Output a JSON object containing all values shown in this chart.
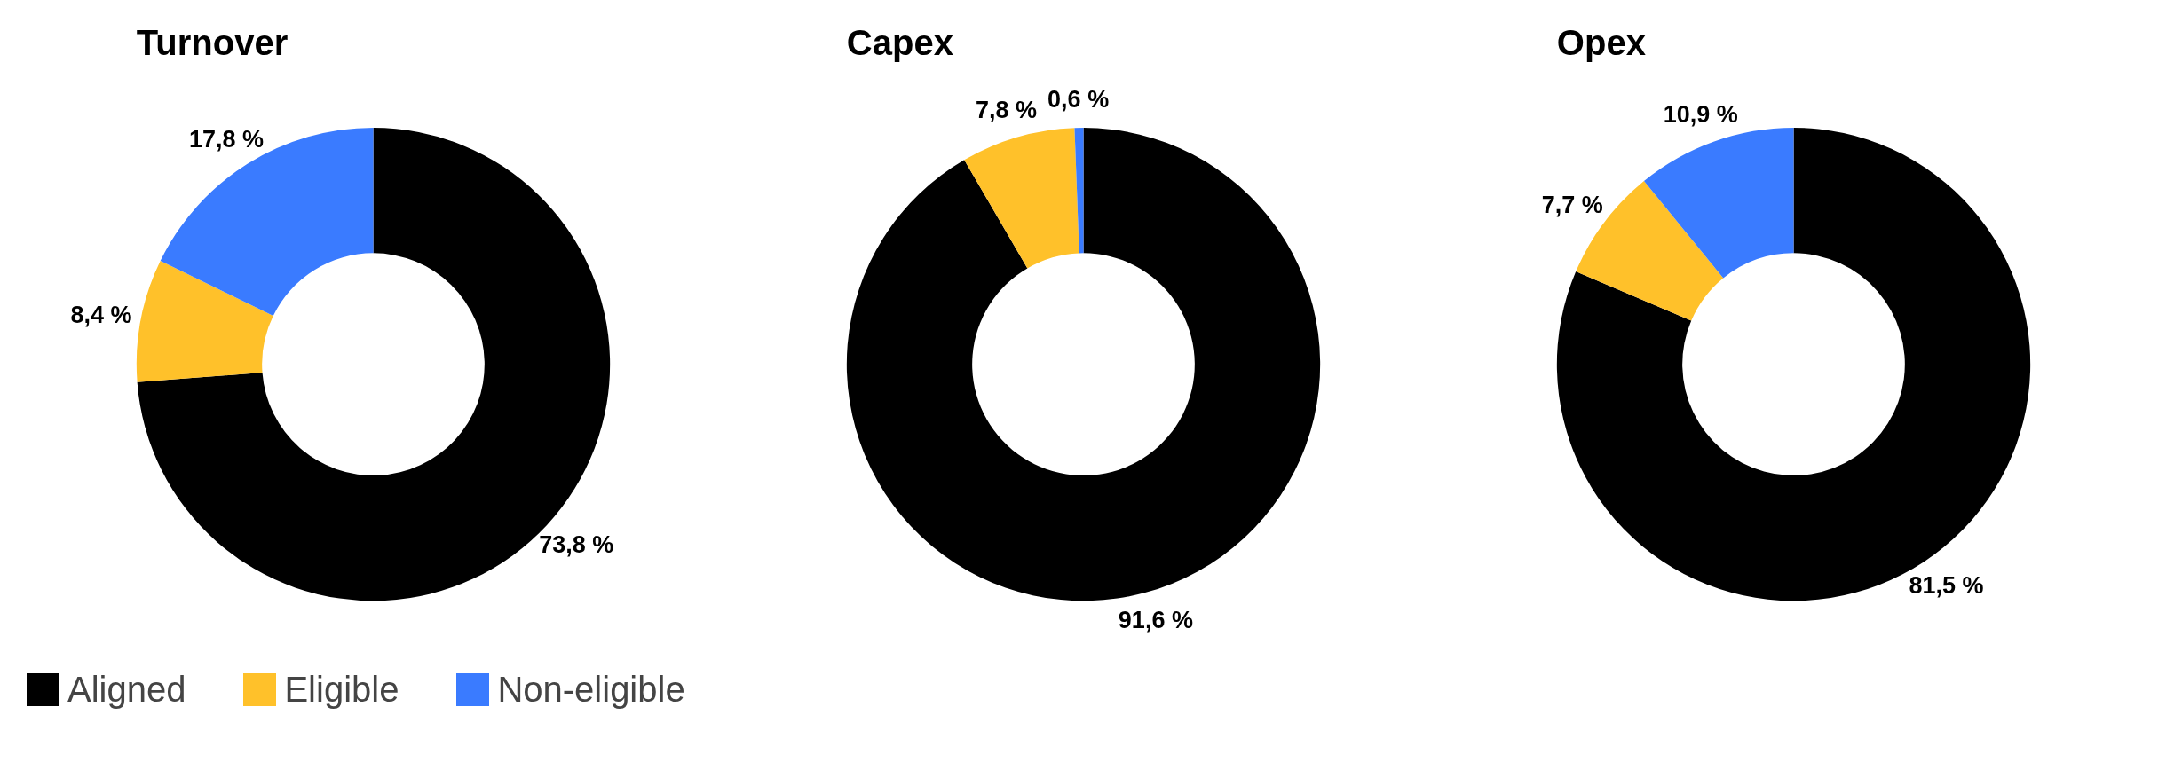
{
  "chart_data": [
    {
      "type": "donut",
      "title": "Turnover",
      "categories": [
        "Aligned",
        "Eligible",
        "Non-eligible"
      ],
      "values": [
        73.8,
        8.4,
        17.8
      ],
      "colors": [
        "#000000",
        "#ffc12a",
        "#3a7bff"
      ],
      "value_labels": [
        "73,8 %",
        "8,4 %",
        "17,8 %"
      ],
      "legend": "bottom"
    },
    {
      "type": "donut",
      "title": "Capex",
      "categories": [
        null,
        null,
        null
      ],
      "values": [
        91.6,
        7.8,
        0.6
      ],
      "colors": [
        "#000000",
        "#ffc12a",
        "#3a7bff"
      ],
      "value_labels": [
        "91,6 %",
        "7,8 %",
        "0,6 %"
      ]
    },
    {
      "type": "donut",
      "title": "Opex",
      "categories": [
        null,
        null,
        null
      ],
      "values": [
        81.5,
        7.7,
        10.9
      ],
      "colors": [
        "#000000",
        "#ffc12a",
        "#3a7bff"
      ],
      "value_labels": [
        "81,5 %",
        "7,7 %",
        "10,9 %"
      ]
    }
  ]
}
